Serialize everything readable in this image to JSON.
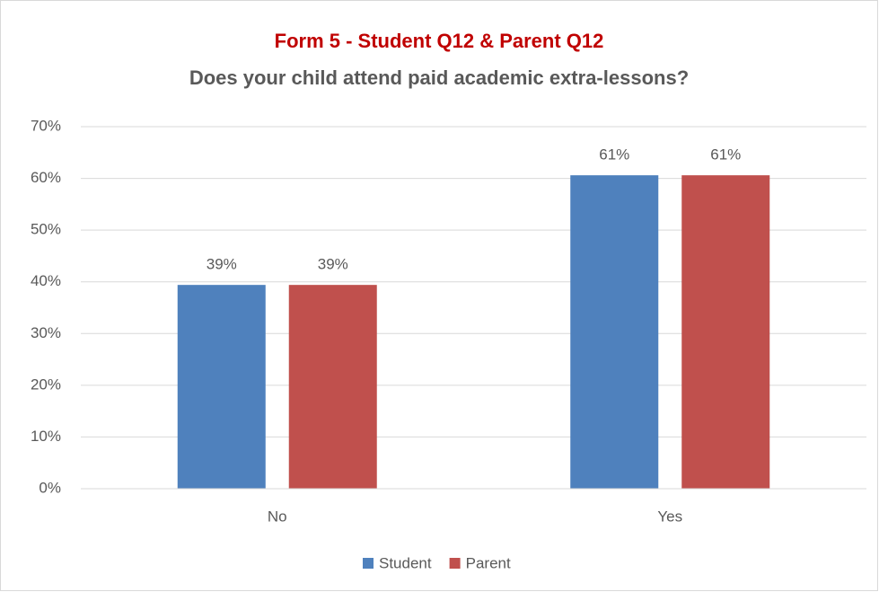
{
  "chart_data": {
    "type": "bar",
    "title": "Form 5 - Student Q12 & Parent Q12",
    "subtitle": "Does your child attend paid academic extra-lessons?",
    "categories": [
      "No",
      "Yes"
    ],
    "series": [
      {
        "name": "Student",
        "color": "#4f81bd",
        "values": [
          39.4,
          60.6
        ],
        "value_labels": [
          "39%",
          "61%"
        ]
      },
      {
        "name": "Parent",
        "color": "#c0504d",
        "values": [
          39.4,
          60.6
        ],
        "value_labels": [
          "39%",
          "61%"
        ]
      }
    ],
    "ylim": [
      0,
      70
    ],
    "yticks": [
      {
        "value": 0,
        "label": "0%"
      },
      {
        "value": 10,
        "label": "10%"
      },
      {
        "value": 20,
        "label": "20%"
      },
      {
        "value": 30,
        "label": "30%"
      },
      {
        "value": 40,
        "label": "40%"
      },
      {
        "value": 50,
        "label": "50%"
      },
      {
        "value": 60,
        "label": "60%"
      },
      {
        "value": 70,
        "label": "70%"
      }
    ],
    "grid": true,
    "legend": "bottom"
  }
}
